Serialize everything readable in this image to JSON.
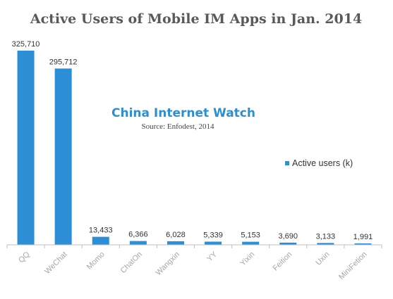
{
  "chart_data": {
    "type": "bar",
    "title": "Active Users of Mobile IM Apps in Jan. 2014",
    "watermark": "China Internet Watch",
    "source": "Source: Enfodest, 2014",
    "categories": [
      "QQ",
      "WeChat",
      "Momo",
      "ChatOn",
      "Wangxin",
      "YY",
      "Yixin",
      "Feition",
      "Uxin",
      "MiniFetion"
    ],
    "series": [
      {
        "name": "Active users (k)",
        "values": [
          325710,
          295712,
          13433,
          6366,
          6028,
          5339,
          5153,
          3690,
          3133,
          1991
        ],
        "labels": [
          "325,710",
          "295,712",
          "13,433",
          "6,366",
          "6,028",
          "5,339",
          "5,153",
          "3,690",
          "3,133",
          "1,991"
        ]
      }
    ],
    "legend_position": "right",
    "ylim": [
      0,
      325710
    ],
    "grid": false,
    "colors": {
      "bar": "#2c8ed4",
      "axis": "#bfbfbf",
      "tick_label": "#a6a6a6"
    }
  }
}
